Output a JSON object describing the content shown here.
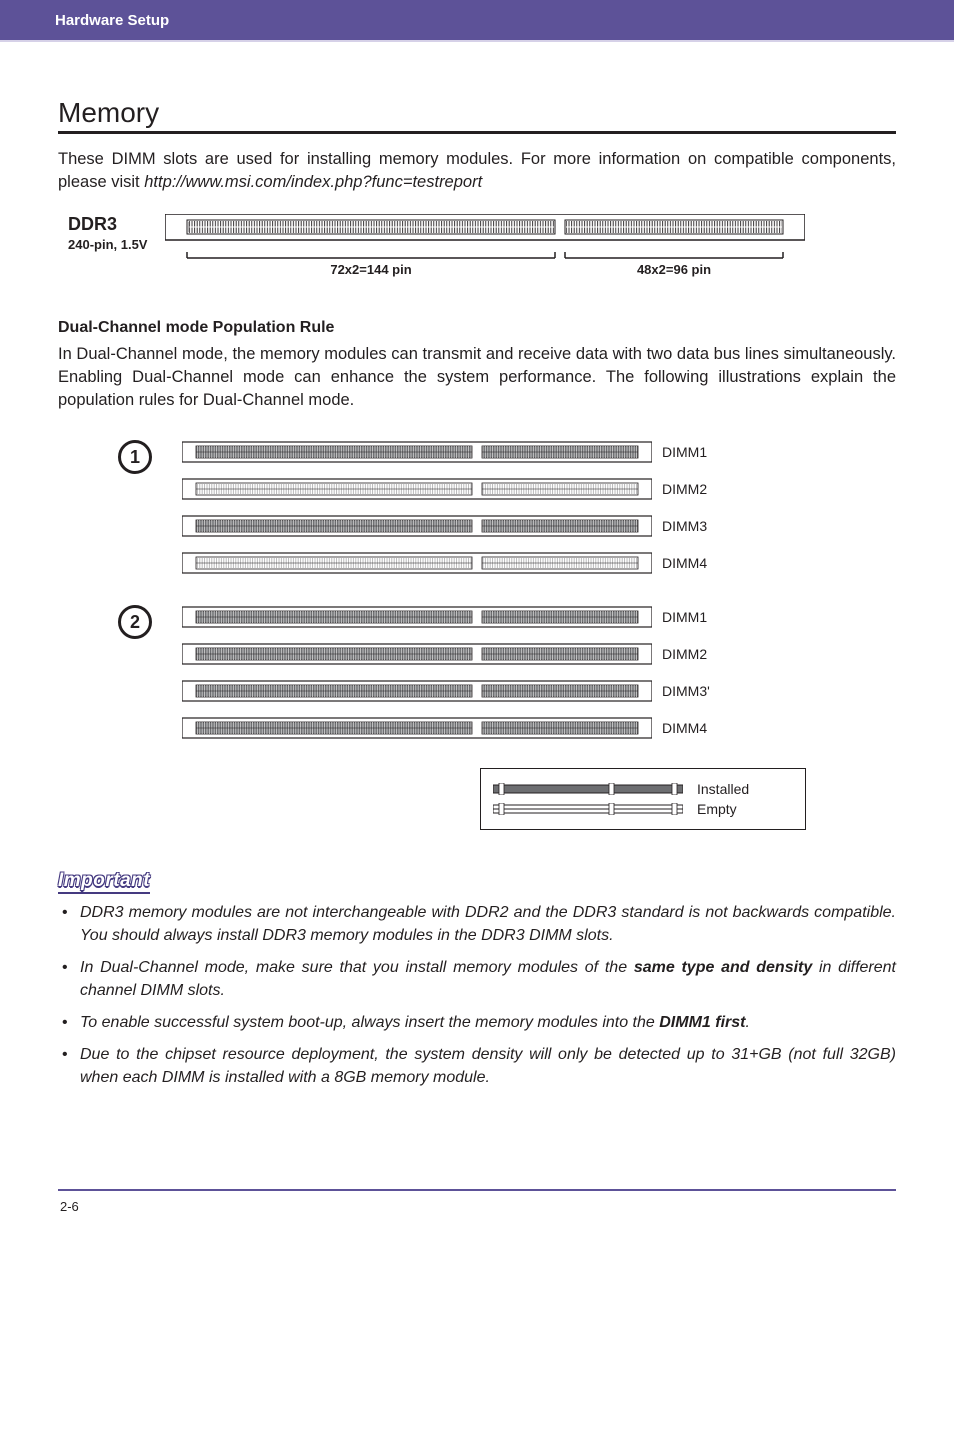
{
  "header": {
    "title": "Hardware Setup"
  },
  "memory": {
    "title": "Memory",
    "intro_text": "These DIMM slots are used for installing memory modules. For more information on compatible components, please visit ",
    "intro_link": "http://www.msi.com/index.php?func=testreport",
    "ddr": {
      "line1": "DDR3",
      "line2": "240-pin, 1.5V",
      "left_pins": "72x2=144  pin",
      "right_pins": "48x2=96 pin"
    }
  },
  "dual": {
    "heading": "Dual-Channel mode Population Rule",
    "text": "In Dual-Channel mode, the memory modules can transmit and receive data with two data bus lines simultaneously. Enabling Dual-Channel mode can enhance the system performance. The following illustrations explain the population rules for Dual-Channel mode."
  },
  "groups": [
    {
      "num": "1",
      "slots": [
        {
          "label": "DIMM1",
          "filled": true
        },
        {
          "label": "DIMM2",
          "filled": false
        },
        {
          "label": "DIMM3",
          "filled": true
        },
        {
          "label": "DIMM4",
          "filled": false
        }
      ]
    },
    {
      "num": "2",
      "slots": [
        {
          "label": "DIMM1",
          "filled": true
        },
        {
          "label": "DIMM2",
          "filled": true
        },
        {
          "label": "DIMM3'",
          "filled": true
        },
        {
          "label": "DIMM4",
          "filled": true
        }
      ]
    }
  ],
  "legend": {
    "installed": "Installed",
    "empty": "Empty"
  },
  "important": {
    "title": "Important",
    "notes": [
      {
        "pre": "DDR3 memory modules are not interchangeable with DDR2 and the DDR3 standard is not backwards compatible. You should always install DDR3 memory modules in the DDR3 DIMM slots."
      },
      {
        "pre": "In Dual-Channel mode, make sure that you install memory modules of the ",
        "bold": "same type and density",
        "post": " in different channel DIMM slots."
      },
      {
        "pre": "To enable successful system boot-up, always insert the memory modules into the ",
        "bold": "DIMM1 first",
        "post": "."
      },
      {
        "pre": "Due to the chipset resource deployment, the system density will only be detected up to 31+GB (not full 32GB) when each DIMM is installed with a 8GB memory module."
      }
    ]
  },
  "footer": {
    "page": "2-6"
  },
  "colors": {
    "purple": "#5d5298",
    "text": "#231f20",
    "slot_fill": "#6d6e71",
    "slot_stroke": "#231f20"
  }
}
